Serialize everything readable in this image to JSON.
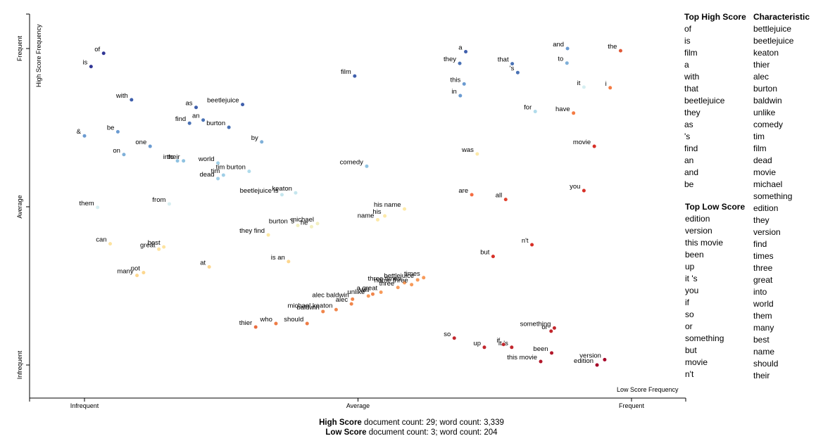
{
  "summary": {
    "high": {
      "label": "High Score",
      "text": " document count: 29; word count: 3,339"
    },
    "low": {
      "label": "Low Score",
      "text": " document count: 3; word count: 204"
    }
  },
  "axes": {
    "y_title": "High Score Frequency",
    "x_title": "Low Score Frequency",
    "x_ticks": [
      "Infrequent",
      "Average",
      "Frequent"
    ],
    "y_ticks": [
      "Frequent",
      "Average",
      "Infrequent"
    ]
  },
  "lists": {
    "top_high": {
      "title": "Top High Score",
      "terms": [
        "of",
        "is",
        "film",
        "a",
        "with",
        "that",
        "beetlejuice",
        "they",
        "as",
        "'s",
        "find",
        "an",
        "and",
        "be"
      ]
    },
    "top_low": {
      "title": "Top Low Score",
      "terms": [
        "edition",
        "version",
        "this movie",
        "been",
        "up",
        "it 's",
        "you",
        "if",
        "so",
        "or",
        "something",
        "but",
        "movie",
        "n't"
      ]
    },
    "characteristic": {
      "title": "Characteristic",
      "terms": [
        "bettlejuice",
        "beetlejuice",
        "keaton",
        "thier",
        "alec",
        "burton",
        "baldwin",
        "unlike",
        "comedy",
        "tim",
        "film",
        "dead",
        "movie",
        "michael",
        "something",
        "edition",
        "they",
        "version",
        "find",
        "times",
        "three",
        "great",
        "into",
        "world",
        "them",
        "many",
        "best",
        "name",
        "should",
        "their"
      ]
    }
  },
  "chart_data": {
    "type": "scatter",
    "xlabel": "Low Score Frequency",
    "ylabel": "High Score Frequency",
    "xlim": [
      0,
      1
    ],
    "ylim": [
      0,
      1
    ],
    "x_tick_labels": [
      "Infrequent",
      "Average",
      "Frequent"
    ],
    "y_tick_labels": [
      "Infrequent",
      "Average",
      "Frequent"
    ],
    "points": [
      {
        "term": "of",
        "x": 0.035,
        "y": 0.985,
        "color": "#313695"
      },
      {
        "term": "is",
        "x": 0.012,
        "y": 0.943,
        "color": "#313695"
      },
      {
        "term": "with",
        "x": 0.086,
        "y": 0.838,
        "color": "#3f5fac"
      },
      {
        "term": "as",
        "x": 0.204,
        "y": 0.814,
        "color": "#3f5fac"
      },
      {
        "term": "beetlejuice",
        "x": 0.289,
        "y": 0.823,
        "color": "#3f5fac"
      },
      {
        "term": "find",
        "x": 0.192,
        "y": 0.764,
        "color": "#4a72b5"
      },
      {
        "term": "an",
        "x": 0.217,
        "y": 0.774,
        "color": "#4a72b5"
      },
      {
        "term": "burton",
        "x": 0.264,
        "y": 0.751,
        "color": "#4a72b5"
      },
      {
        "term": "&",
        "x": 0.0,
        "y": 0.724,
        "color": "#6b9bd1"
      },
      {
        "term": "be",
        "x": 0.061,
        "y": 0.737,
        "color": "#6b9bd1"
      },
      {
        "term": "one",
        "x": 0.12,
        "y": 0.691,
        "color": "#6b9bd1"
      },
      {
        "term": "on",
        "x": 0.072,
        "y": 0.665,
        "color": "#7fb0d9"
      },
      {
        "term": "by",
        "x": 0.324,
        "y": 0.705,
        "color": "#7fb0d9"
      },
      {
        "term": "their",
        "x": 0.181,
        "y": 0.645,
        "color": "#8fc2e1"
      },
      {
        "term": "into",
        "x": 0.17,
        "y": 0.645,
        "color": "#8fc2e1"
      },
      {
        "term": "world",
        "x": 0.244,
        "y": 0.638,
        "color": "#a0cfe7"
      },
      {
        "term": "dead",
        "x": 0.244,
        "y": 0.589,
        "color": "#a0cfe7"
      },
      {
        "term": "tim",
        "x": 0.254,
        "y": 0.6,
        "color": "#a0cfe7"
      },
      {
        "term": "tim burton",
        "x": 0.301,
        "y": 0.612,
        "color": "#b0dbeb"
      },
      {
        "term": "beetlejuice is",
        "x": 0.361,
        "y": 0.538,
        "color": "#c5e6ee"
      },
      {
        "term": "keaton",
        "x": 0.386,
        "y": 0.544,
        "color": "#c5e6ee"
      },
      {
        "term": "them",
        "x": 0.024,
        "y": 0.498,
        "color": "#d6eef1"
      },
      {
        "term": "from",
        "x": 0.155,
        "y": 0.509,
        "color": "#d6eef1"
      },
      {
        "term": "burton 's",
        "x": 0.39,
        "y": 0.441,
        "color": "#f2efc0"
      },
      {
        "term": "he",
        "x": 0.415,
        "y": 0.437,
        "color": "#f2efc0"
      },
      {
        "term": "michael",
        "x": 0.426,
        "y": 0.447,
        "color": "#f2efc0"
      },
      {
        "term": "they find",
        "x": 0.336,
        "y": 0.411,
        "color": "#fce8a4"
      },
      {
        "term": "can",
        "x": 0.047,
        "y": 0.383,
        "color": "#fde3a0"
      },
      {
        "term": "great",
        "x": 0.136,
        "y": 0.366,
        "color": "#fde3a0"
      },
      {
        "term": "best",
        "x": 0.145,
        "y": 0.373,
        "color": "#fde3a0"
      },
      {
        "term": "at",
        "x": 0.228,
        "y": 0.31,
        "color": "#fdd78f"
      },
      {
        "term": "is an",
        "x": 0.373,
        "y": 0.327,
        "color": "#fdd78f"
      },
      {
        "term": "many",
        "x": 0.096,
        "y": 0.283,
        "color": "#fdd78f"
      },
      {
        "term": "not",
        "x": 0.108,
        "y": 0.292,
        "color": "#fdd78f"
      },
      {
        "term": "film",
        "x": 0.494,
        "y": 0.913,
        "color": "#3f5fac"
      },
      {
        "term": "comedy",
        "x": 0.516,
        "y": 0.628,
        "color": "#8fc2e1"
      },
      {
        "term": "name",
        "x": 0.536,
        "y": 0.459,
        "color": "#fde9a8"
      },
      {
        "term": "his name",
        "x": 0.585,
        "y": 0.493,
        "color": "#fde9a8"
      },
      {
        "term": "his",
        "x": 0.549,
        "y": 0.471,
        "color": "#fde9a8"
      },
      {
        "term": "three times",
        "x": 0.585,
        "y": 0.26,
        "color": "#f79a5a"
      },
      {
        "term": "times",
        "x": 0.62,
        "y": 0.276,
        "color": "#f79a5a"
      },
      {
        "term": "bettlejuice",
        "x": 0.609,
        "y": 0.269,
        "color": "#f79a5a"
      },
      {
        "term": "name three",
        "x": 0.598,
        "y": 0.254,
        "color": "#f79a5a"
      },
      {
        "term": "a great",
        "x": 0.542,
        "y": 0.23,
        "color": "#f79a5a"
      },
      {
        "term": "unlike",
        "x": 0.519,
        "y": 0.218,
        "color": "#f79a5a"
      },
      {
        "term": "three",
        "x": 0.573,
        "y": 0.245,
        "color": "#f79a5a"
      },
      {
        "term": "alec baldwin",
        "x": 0.49,
        "y": 0.208,
        "color": "#f0864c"
      },
      {
        "term": "alec",
        "x": 0.488,
        "y": 0.193,
        "color": "#f0864c"
      },
      {
        "term": "will",
        "x": 0.527,
        "y": 0.224,
        "color": "#f0864c"
      },
      {
        "term": "michael keaton",
        "x": 0.46,
        "y": 0.175,
        "color": "#f0864c"
      },
      {
        "term": "baldwin",
        "x": 0.436,
        "y": 0.169,
        "color": "#f0864c"
      },
      {
        "term": "should",
        "x": 0.407,
        "y": 0.131,
        "color": "#ee7c45"
      },
      {
        "term": "who",
        "x": 0.35,
        "y": 0.131,
        "color": "#ee7c45"
      },
      {
        "term": "thier",
        "x": 0.313,
        "y": 0.12,
        "color": "#ea6c3e"
      },
      {
        "term": "a",
        "x": 0.697,
        "y": 0.99,
        "color": "#3f5fac"
      },
      {
        "term": "they",
        "x": 0.686,
        "y": 0.953,
        "color": "#4a72b5"
      },
      {
        "term": "that",
        "x": 0.782,
        "y": 0.952,
        "color": "#4a72b5"
      },
      {
        "term": "'s",
        "x": 0.792,
        "y": 0.924,
        "color": "#4a72b5"
      },
      {
        "term": "this",
        "x": 0.694,
        "y": 0.888,
        "color": "#6b9bd1"
      },
      {
        "term": "in",
        "x": 0.687,
        "y": 0.851,
        "color": "#6b9bd1"
      },
      {
        "term": "and",
        "x": 0.883,
        "y": 1.0,
        "color": "#6b9bd1"
      },
      {
        "term": "to",
        "x": 0.882,
        "y": 0.954,
        "color": "#7fb0d9"
      },
      {
        "term": "it",
        "x": 0.913,
        "y": 0.878,
        "color": "#d6eef1"
      },
      {
        "term": "for",
        "x": 0.824,
        "y": 0.801,
        "color": "#b0dbeb"
      },
      {
        "term": "the",
        "x": 0.98,
        "y": 0.993,
        "color": "#e05a38"
      },
      {
        "term": "i",
        "x": 0.961,
        "y": 0.876,
        "color": "#f47b43"
      },
      {
        "term": "have",
        "x": 0.894,
        "y": 0.796,
        "color": "#f47b43"
      },
      {
        "term": "movie",
        "x": 0.932,
        "y": 0.691,
        "color": "#d73027"
      },
      {
        "term": "was",
        "x": 0.718,
        "y": 0.667,
        "color": "#fde9a8"
      },
      {
        "term": "are",
        "x": 0.708,
        "y": 0.538,
        "color": "#f46d43"
      },
      {
        "term": "all",
        "x": 0.77,
        "y": 0.523,
        "color": "#e0422f"
      },
      {
        "term": "you",
        "x": 0.913,
        "y": 0.551,
        "color": "#d73027"
      },
      {
        "term": "n't",
        "x": 0.818,
        "y": 0.38,
        "color": "#d73027"
      },
      {
        "term": "but",
        "x": 0.747,
        "y": 0.343,
        "color": "#d73027"
      },
      {
        "term": "so",
        "x": 0.676,
        "y": 0.085,
        "color": "#c2272d"
      },
      {
        "term": "up",
        "x": 0.731,
        "y": 0.056,
        "color": "#c2272d"
      },
      {
        "term": "if",
        "x": 0.766,
        "y": 0.065,
        "color": "#c2272d"
      },
      {
        "term": "it 's",
        "x": 0.781,
        "y": 0.056,
        "color": "#c2272d"
      },
      {
        "term": "something",
        "x": 0.859,
        "y": 0.117,
        "color": "#c2272d"
      },
      {
        "term": "or",
        "x": 0.853,
        "y": 0.107,
        "color": "#c2272d"
      },
      {
        "term": "this movie",
        "x": 0.834,
        "y": 0.011,
        "color": "#b2182b"
      },
      {
        "term": "been",
        "x": 0.854,
        "y": 0.038,
        "color": "#b2182b"
      },
      {
        "term": "version",
        "x": 0.951,
        "y": 0.017,
        "color": "#a50026"
      },
      {
        "term": "edition",
        "x": 0.937,
        "y": 0.0,
        "color": "#a50026"
      }
    ]
  }
}
